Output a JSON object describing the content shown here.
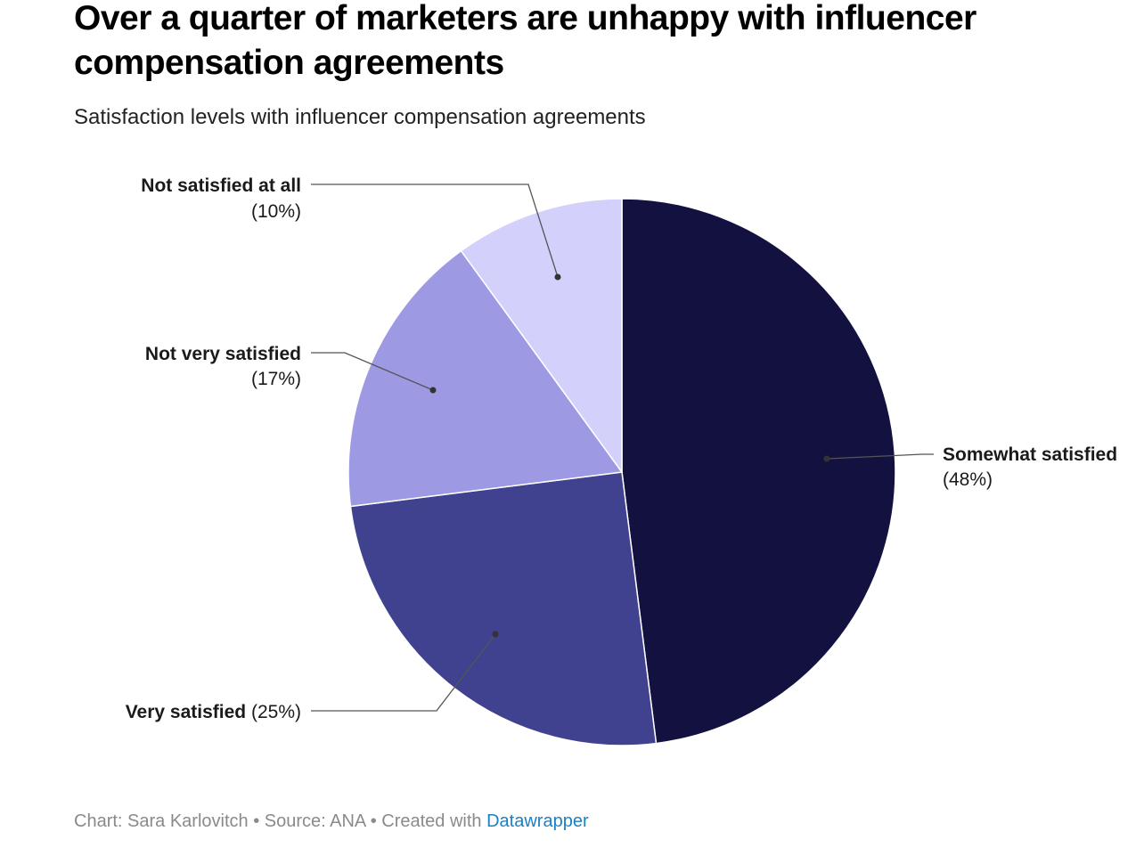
{
  "header": {
    "title": "Over a quarter of marketers are unhappy with influencer compensation agreements",
    "subtitle": "Satisfaction levels with influencer compensation agreements"
  },
  "chart_data": {
    "type": "pie",
    "title": "Over a quarter of marketers are unhappy with influencer compensation agreements",
    "subtitle": "Satisfaction levels with influencer compensation agreements",
    "categories": [
      "Somewhat satisfied",
      "Very satisfied",
      "Not very satisfied",
      "Not satisfied at all"
    ],
    "values": [
      48,
      25,
      17,
      10
    ],
    "value_labels": [
      "(48%)",
      "(25%)",
      "(17%)",
      "(10%)"
    ],
    "colors": [
      "#12113f",
      "#40418f",
      "#9d99e2",
      "#d3d0fc"
    ],
    "start_angle_deg": 0,
    "direction": "clockwise"
  },
  "footer": {
    "credit": "Chart: Sara Karlovitch • Source: ANA • Created with ",
    "link": "Datawrapper",
    "link_color": "#1d7fc4"
  }
}
